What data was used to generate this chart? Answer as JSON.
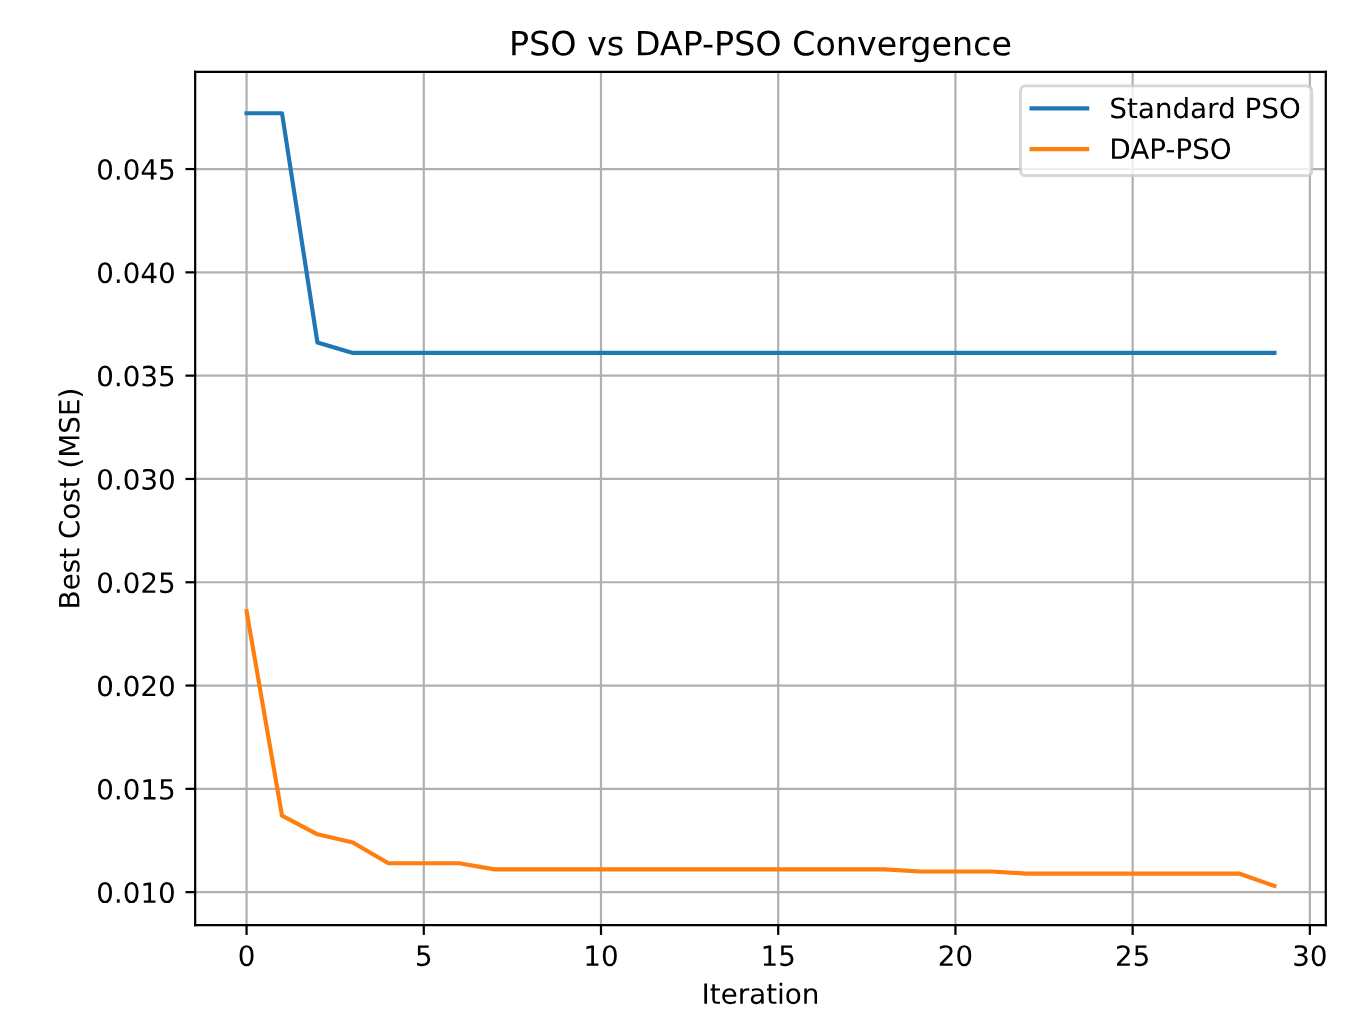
{
  "chart_data": {
    "type": "line",
    "title": "PSO vs DAP-PSO Convergence",
    "xlabel": "Iteration",
    "ylabel": "Best Cost (MSE)",
    "x": [
      0,
      1,
      2,
      3,
      4,
      5,
      6,
      7,
      8,
      9,
      10,
      11,
      12,
      13,
      14,
      15,
      16,
      17,
      18,
      19,
      20,
      21,
      22,
      23,
      24,
      25,
      26,
      27,
      28,
      29
    ],
    "series": [
      {
        "name": "Standard PSO",
        "color": "#1f77b4",
        "values": [
          0.0477,
          0.0477,
          0.0366,
          0.0361,
          0.0361,
          0.0361,
          0.0361,
          0.0361,
          0.0361,
          0.0361,
          0.0361,
          0.0361,
          0.0361,
          0.0361,
          0.0361,
          0.0361,
          0.0361,
          0.0361,
          0.0361,
          0.0361,
          0.0361,
          0.0361,
          0.0361,
          0.0361,
          0.0361,
          0.0361,
          0.0361,
          0.0361,
          0.0361,
          0.0361
        ]
      },
      {
        "name": "DAP-PSO",
        "color": "#ff7f0e",
        "values": [
          0.0236,
          0.0137,
          0.0128,
          0.0124,
          0.0114,
          0.0114,
          0.0114,
          0.0111,
          0.0111,
          0.0111,
          0.0111,
          0.0111,
          0.0111,
          0.0111,
          0.0111,
          0.0111,
          0.0111,
          0.0111,
          0.0111,
          0.011,
          0.011,
          0.011,
          0.0109,
          0.0109,
          0.0109,
          0.0109,
          0.0109,
          0.0109,
          0.0109,
          0.0103
        ]
      }
    ],
    "xlim": [
      -1.45,
      30.45
    ],
    "xticks": [
      0,
      5,
      10,
      15,
      20,
      25,
      30
    ],
    "ylim": [
      0.0084,
      0.0497
    ],
    "yticks": [
      {
        "value": 0.01,
        "label": "0.010"
      },
      {
        "value": 0.015,
        "label": "0.015"
      },
      {
        "value": 0.02,
        "label": "0.020"
      },
      {
        "value": 0.025,
        "label": "0.025"
      },
      {
        "value": 0.03,
        "label": "0.030"
      },
      {
        "value": 0.035,
        "label": "0.035"
      },
      {
        "value": 0.04,
        "label": "0.040"
      },
      {
        "value": 0.045,
        "label": "0.045"
      }
    ],
    "grid": true,
    "legend": "top right"
  }
}
